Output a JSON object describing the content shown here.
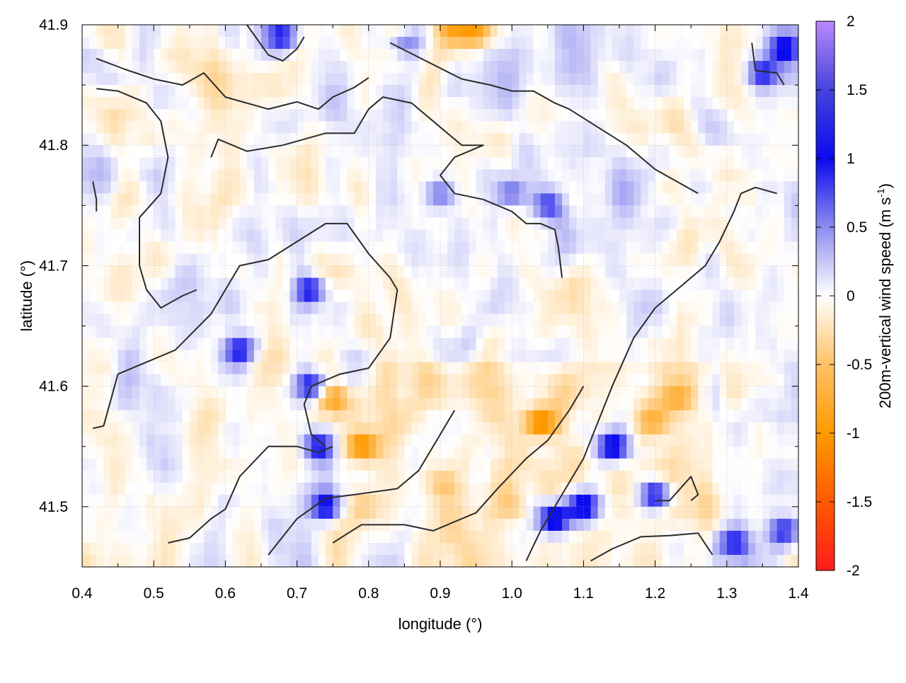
{
  "chart_data": {
    "type": "heatmap",
    "title": "",
    "xlabel": "longitude (°)",
    "ylabel": "latitude (°)",
    "colorbar_label": "200m-vertical wind speed (m s-1)",
    "colorbar_label_parts": {
      "main": "200m-vertical wind speed (m s",
      "sup": "-1",
      "end": ")"
    },
    "xlim": [
      0.4,
      1.4
    ],
    "ylim": [
      41.45,
      41.9
    ],
    "x_ticks": [
      0.4,
      0.5,
      0.6,
      0.7,
      0.8,
      0.9,
      1.0,
      1.1,
      1.2,
      1.3,
      1.4
    ],
    "x_tick_labels": [
      "0.4",
      "0.5",
      "0.6",
      "0.7",
      "0.8",
      "0.9",
      "1.0",
      "1.1",
      "1.2",
      "1.3",
      "1.4"
    ],
    "y_ticks": [
      41.5,
      41.6,
      41.7,
      41.8,
      41.9
    ],
    "y_tick_labels": [
      "41.5",
      "41.6",
      "41.7",
      "41.8",
      "41.9"
    ],
    "colorbar_range": [
      -2,
      2
    ],
    "colorbar_ticks": [
      2,
      1.5,
      1,
      0.5,
      0,
      -0.5,
      -1,
      -1.5,
      -2
    ],
    "colorbar_tick_labels": [
      "2",
      "1.5",
      "1",
      "0.5",
      "0",
      "-0.5",
      "-1",
      "-1.5",
      "-2"
    ],
    "grid": true,
    "colormap": [
      {
        "v": -2.0,
        "color": "#ff1a1a"
      },
      {
        "v": -1.5,
        "color": "#ff5a00"
      },
      {
        "v": -1.0,
        "color": "#ff9a00"
      },
      {
        "v": -0.5,
        "color": "#ffc266"
      },
      {
        "v": 0.0,
        "color": "#ffffff"
      },
      {
        "v": 0.5,
        "color": "#8c8cf0"
      },
      {
        "v": 1.0,
        "color": "#0a0aee"
      },
      {
        "v": 1.5,
        "color": "#4444dd"
      },
      {
        "v": 2.0,
        "color": "#bb88ff"
      }
    ],
    "features": [
      {
        "name": "blue-band-west",
        "lon": [
          0.72,
          0.72,
          0.73,
          0.74
        ],
        "lat": [
          41.68,
          41.6,
          41.55,
          41.5
        ],
        "w": 1.1
      },
      {
        "name": "blue-band-south",
        "lon": [
          1.06,
          1.1,
          1.14,
          1.2
        ],
        "lat": [
          41.49,
          41.5,
          41.55,
          41.51
        ],
        "w": 1.3
      },
      {
        "name": "blue-band-ridge",
        "lon": [
          0.9,
          1.0,
          1.05
        ],
        "lat": [
          41.76,
          41.76,
          41.75
        ],
        "w": 0.7
      },
      {
        "name": "orange-spot-1",
        "lon": [
          1.04
        ],
        "lat": [
          41.57
        ],
        "w": -1.3
      },
      {
        "name": "orange-spot-2",
        "lon": [
          0.79
        ],
        "lat": [
          41.55
        ],
        "w": -1.2
      },
      {
        "name": "orange-spot-3",
        "lon": [
          0.75
        ],
        "lat": [
          41.59
        ],
        "w": -0.9
      },
      {
        "name": "orange-region-east",
        "lon": [
          1.2,
          1.23
        ],
        "lat": [
          41.57,
          41.59
        ],
        "w": -0.55
      },
      {
        "name": "orange-region-south",
        "lon": [
          0.8,
          0.9,
          1.0
        ],
        "lat": [
          41.5,
          41.52,
          41.5
        ],
        "w": -0.35
      },
      {
        "name": "orange-top-edge",
        "lon": [
          0.85,
          0.92,
          0.95
        ],
        "lat": [
          41.895,
          41.895,
          41.895
        ],
        "w": -0.8
      },
      {
        "name": "blue-top-edge",
        "lon": [
          0.68,
          0.85
        ],
        "lat": [
          41.89,
          41.89
        ],
        "w": 0.9
      },
      {
        "name": "blue-ne-corner",
        "lon": [
          1.35,
          1.38
        ],
        "lat": [
          41.86,
          41.88
        ],
        "w": 1.0
      },
      {
        "name": "blue-se-corner",
        "lon": [
          1.31,
          1.38
        ],
        "lat": [
          41.47,
          41.48
        ],
        "w": 0.9
      },
      {
        "name": "blue-spot-west",
        "lon": [
          0.62
        ],
        "lat": [
          41.63
        ],
        "w": 1.0
      }
    ],
    "contours": [
      {
        "lon": [
          0.42,
          0.46,
          0.5,
          0.54,
          0.57,
          0.6,
          0.66,
          0.7,
          0.73,
          0.75,
          0.78,
          0.8
        ],
        "lat": [
          41.872,
          41.863,
          41.855,
          41.85,
          41.86,
          41.84,
          41.83,
          41.836,
          41.83,
          41.84,
          41.848,
          41.856
        ]
      },
      {
        "lon": [
          0.42,
          0.45,
          0.49,
          0.51,
          0.52,
          0.51,
          0.48,
          0.48,
          0.48,
          0.49,
          0.51,
          0.54,
          0.56
        ],
        "lat": [
          41.847,
          41.845,
          41.835,
          41.82,
          41.79,
          41.76,
          41.74,
          41.72,
          41.7,
          41.68,
          41.665,
          41.675,
          41.68
        ]
      },
      {
        "lon": [
          0.58,
          0.59,
          0.63,
          0.68,
          0.74,
          0.78,
          0.8,
          0.82,
          0.86,
          0.9,
          0.93,
          0.96,
          0.92,
          0.9,
          0.92,
          0.96,
          1.0,
          1.02,
          1.04,
          1.06,
          1.065,
          1.07
        ],
        "lat": [
          41.79,
          41.805,
          41.795,
          41.8,
          41.81,
          41.81,
          41.83,
          41.84,
          41.835,
          41.815,
          41.8,
          41.8,
          41.79,
          41.775,
          41.76,
          41.755,
          41.745,
          41.735,
          41.735,
          41.73,
          41.715,
          41.69
        ]
      },
      {
        "lon": [
          0.415,
          0.43,
          0.45,
          0.49,
          0.53,
          0.58,
          0.62,
          0.66,
          0.7,
          0.74,
          0.77,
          0.8,
          0.83,
          0.84,
          0.83,
          0.8,
          0.76,
          0.72,
          0.71,
          0.72,
          0.74
        ],
        "lat": [
          41.565,
          41.567,
          41.61,
          41.62,
          41.63,
          41.66,
          41.7,
          41.705,
          41.72,
          41.735,
          41.735,
          41.71,
          41.69,
          41.68,
          41.64,
          41.615,
          41.61,
          41.6,
          41.585,
          41.56,
          41.55
        ]
      },
      {
        "lon": [
          0.52,
          0.55,
          0.58,
          0.6,
          0.62,
          0.66,
          0.7,
          0.73,
          0.75
        ],
        "lat": [
          41.47,
          41.474,
          41.49,
          41.498,
          41.525,
          41.55,
          41.55,
          41.545,
          41.55
        ]
      },
      {
        "lon": [
          0.66,
          0.7,
          0.74,
          0.78,
          0.84,
          0.87,
          0.9,
          0.92
        ],
        "lat": [
          41.46,
          41.49,
          41.507,
          41.51,
          41.515,
          41.53,
          41.56,
          41.58
        ]
      },
      {
        "lon": [
          0.75,
          0.79,
          0.85,
          0.89,
          0.95,
          0.98,
          1.02,
          1.05,
          1.08,
          1.1
        ],
        "lat": [
          41.47,
          41.485,
          41.485,
          41.48,
          41.495,
          41.515,
          41.54,
          41.555,
          41.58,
          41.6
        ]
      },
      {
        "lon": [
          0.83,
          0.88,
          0.93,
          0.97,
          1.0,
          1.03,
          1.06,
          1.08,
          1.12,
          1.16,
          1.2,
          1.26
        ],
        "lat": [
          41.885,
          41.87,
          41.855,
          41.85,
          41.845,
          41.845,
          41.835,
          41.83,
          41.815,
          41.8,
          41.78,
          41.76
        ]
      },
      {
        "lon": [
          1.02,
          1.04,
          1.07,
          1.1,
          1.12,
          1.14,
          1.17,
          1.2,
          1.24,
          1.27,
          1.29,
          1.31,
          1.32,
          1.34,
          1.37
        ],
        "lat": [
          41.455,
          41.48,
          41.51,
          41.54,
          41.57,
          41.6,
          41.64,
          41.665,
          41.685,
          41.7,
          41.72,
          41.745,
          41.76,
          41.765,
          41.76
        ]
      },
      {
        "lon": [
          1.11,
          1.14,
          1.18,
          1.22,
          1.26,
          1.28
        ],
        "lat": [
          41.455,
          41.465,
          41.475,
          41.476,
          41.478,
          41.46
        ]
      },
      {
        "lon": [
          1.2,
          1.22,
          1.25,
          1.26,
          1.25
        ],
        "lat": [
          41.505,
          41.505,
          41.525,
          41.51,
          41.505
        ]
      },
      {
        "lon": [
          1.335,
          1.34,
          1.37,
          1.38
        ],
        "lat": [
          41.885,
          41.862,
          41.86,
          41.85
        ]
      },
      {
        "lon": [
          0.415,
          0.42,
          0.42
        ],
        "lat": [
          41.77,
          41.755,
          41.745
        ]
      },
      {
        "lon": [
          0.63,
          0.66,
          0.68,
          0.7,
          0.71
        ],
        "lat": [
          41.9,
          41.875,
          41.87,
          41.88,
          41.89
        ]
      }
    ]
  }
}
